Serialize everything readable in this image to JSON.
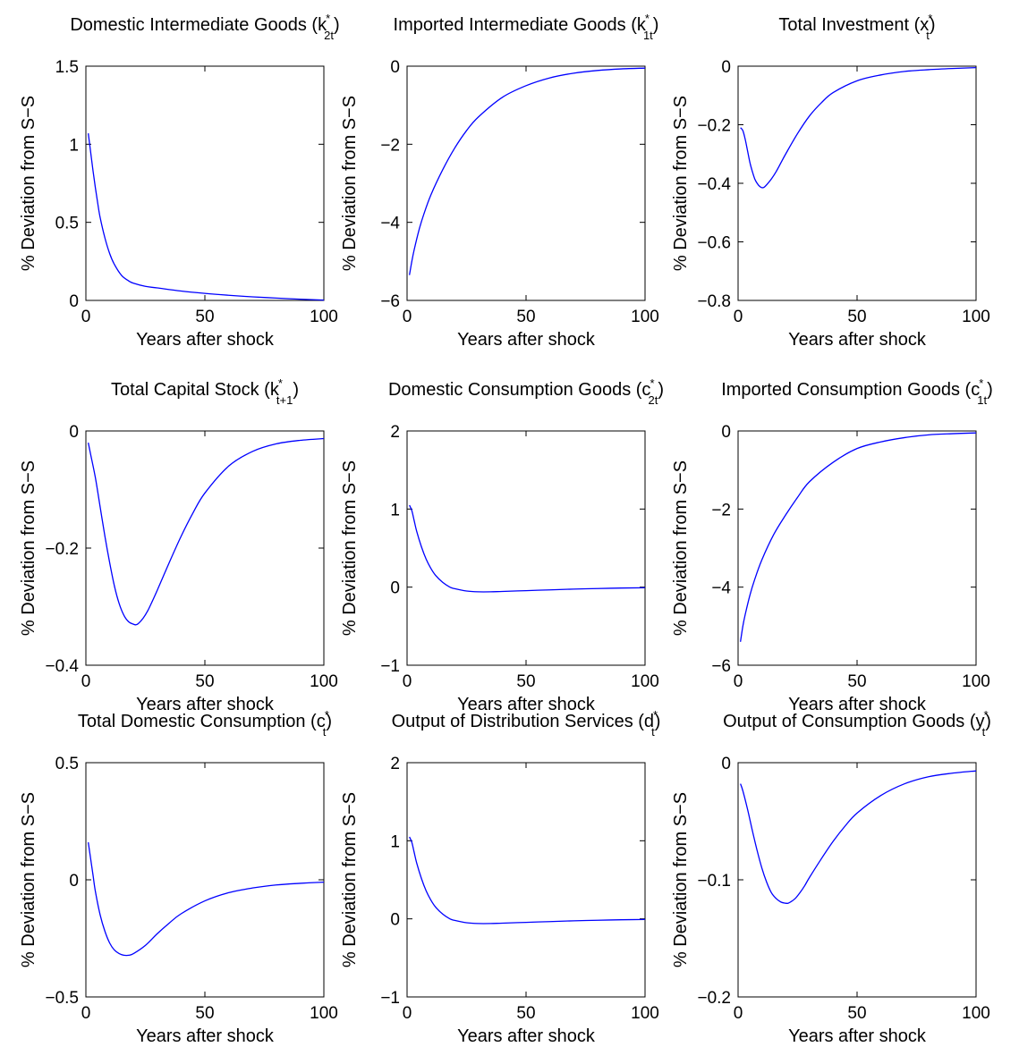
{
  "figure": {
    "line_color": "#0000ff",
    "axes_color": "#000000"
  },
  "chart_data": [
    {
      "type": "line",
      "title": "Domestic Intermediate Goods (k",
      "title_sup": "*",
      "title_sub": "2t",
      "title_close": ")",
      "xlabel": "Years after shock",
      "ylabel": "% Deviation from S−S",
      "xlim": [
        0,
        100
      ],
      "ylim": [
        0,
        1.5
      ],
      "xticks": [
        0,
        50,
        100
      ],
      "xtick_labels": [
        "0",
        "50",
        "100"
      ],
      "yticks": [
        0,
        0.5,
        1,
        1.5
      ],
      "ytick_labels": [
        "0",
        "0.5",
        "1",
        "1.5"
      ],
      "series": [
        {
          "x": [
            1,
            2,
            3,
            4,
            5,
            6,
            8,
            10,
            12,
            15,
            18,
            20,
            25,
            30,
            40,
            50,
            60,
            70,
            80,
            90,
            100
          ],
          "values": [
            1.07,
            0.95,
            0.83,
            0.72,
            0.62,
            0.53,
            0.4,
            0.3,
            0.23,
            0.16,
            0.125,
            0.11,
            0.09,
            0.08,
            0.06,
            0.045,
            0.033,
            0.023,
            0.015,
            0.008,
            0.002
          ]
        }
      ]
    },
    {
      "type": "line",
      "title": "Imported Intermediate Goods (k",
      "title_sup": "*",
      "title_sub": "1t",
      "title_close": ")",
      "xlabel": "Years after shock",
      "ylabel": "% Deviation from S−S",
      "xlim": [
        0,
        100
      ],
      "ylim": [
        -6,
        0
      ],
      "xticks": [
        0,
        50,
        100
      ],
      "xtick_labels": [
        "0",
        "50",
        "100"
      ],
      "yticks": [
        -6,
        -4,
        -2,
        0
      ],
      "ytick_labels": [
        "−6",
        "−4",
        "−2",
        "0"
      ],
      "series": [
        {
          "x": [
            1,
            2,
            3,
            5,
            7,
            10,
            15,
            20,
            25,
            30,
            40,
            50,
            60,
            70,
            80,
            90,
            100
          ],
          "values": [
            -5.35,
            -5.0,
            -4.7,
            -4.2,
            -3.8,
            -3.3,
            -2.65,
            -2.1,
            -1.65,
            -1.3,
            -0.8,
            -0.5,
            -0.3,
            -0.18,
            -0.11,
            -0.07,
            -0.05
          ]
        }
      ]
    },
    {
      "type": "line",
      "title": "Total Investment (x",
      "title_sup": "*",
      "title_sub": "t",
      "title_close": ")",
      "xlabel": "Years after shock",
      "ylabel": "% Deviation from S−S",
      "xlim": [
        0,
        100
      ],
      "ylim": [
        -0.8,
        0
      ],
      "xticks": [
        0,
        50,
        100
      ],
      "xtick_labels": [
        "0",
        "50",
        "100"
      ],
      "yticks": [
        -0.8,
        -0.6,
        -0.4,
        -0.2,
        0
      ],
      "ytick_labels": [
        "−0.8",
        "−0.6",
        "−0.4",
        "−0.2",
        "0"
      ],
      "series": [
        {
          "x": [
            1,
            2,
            3,
            4,
            5,
            6,
            7,
            8,
            9,
            10,
            11,
            12,
            14,
            16,
            18,
            20,
            25,
            30,
            35,
            40,
            50,
            60,
            70,
            80,
            90,
            100
          ],
          "values": [
            -0.21,
            -0.22,
            -0.25,
            -0.29,
            -0.33,
            -0.36,
            -0.385,
            -0.4,
            -0.41,
            -0.415,
            -0.413,
            -0.405,
            -0.385,
            -0.36,
            -0.33,
            -0.3,
            -0.23,
            -0.17,
            -0.125,
            -0.09,
            -0.05,
            -0.03,
            -0.018,
            -0.012,
            -0.008,
            -0.005
          ]
        }
      ]
    },
    {
      "type": "line",
      "title": "Total Capital Stock (k",
      "title_sup": "*",
      "title_sub": "t+1",
      "title_close": ")",
      "xlabel": "Years after shock",
      "ylabel": "% Deviation from S−S",
      "xlim": [
        0,
        100
      ],
      "ylim": [
        -0.4,
        0
      ],
      "xticks": [
        0,
        50,
        100
      ],
      "xtick_labels": [
        "0",
        "50",
        "100"
      ],
      "yticks": [
        -0.4,
        -0.2,
        0
      ],
      "ytick_labels": [
        "−0.4",
        "−0.2",
        "0"
      ],
      "series": [
        {
          "x": [
            1,
            2,
            4,
            6,
            8,
            10,
            12,
            14,
            16,
            18,
            20,
            21,
            22,
            24,
            26,
            28,
            30,
            35,
            40,
            45,
            50,
            60,
            70,
            80,
            90,
            100
          ],
          "values": [
            -0.02,
            -0.04,
            -0.08,
            -0.13,
            -0.18,
            -0.225,
            -0.265,
            -0.295,
            -0.315,
            -0.326,
            -0.33,
            -0.331,
            -0.329,
            -0.32,
            -0.307,
            -0.29,
            -0.272,
            -0.225,
            -0.18,
            -0.14,
            -0.106,
            -0.06,
            -0.035,
            -0.022,
            -0.016,
            -0.013
          ]
        }
      ]
    },
    {
      "type": "line",
      "title": "Domestic Consumption Goods (c",
      "title_sup": "*",
      "title_sub": "2t",
      "title_close": ")",
      "xlabel": "Years after shock",
      "ylabel": "% Deviation from S−S",
      "xlim": [
        0,
        100
      ],
      "ylim": [
        -1,
        2
      ],
      "xticks": [
        0,
        50,
        100
      ],
      "xtick_labels": [
        "0",
        "50",
        "100"
      ],
      "yticks": [
        -1,
        0,
        1,
        2
      ],
      "ytick_labels": [
        "−1",
        "0",
        "1",
        "2"
      ],
      "series": [
        {
          "x": [
            1,
            2,
            3,
            4,
            6,
            8,
            10,
            12,
            15,
            18,
            20,
            25,
            30,
            35,
            40,
            50,
            60,
            70,
            80,
            90,
            100
          ],
          "values": [
            1.05,
            0.98,
            0.85,
            0.72,
            0.52,
            0.36,
            0.24,
            0.15,
            0.06,
            0.0,
            -0.02,
            -0.05,
            -0.06,
            -0.06,
            -0.055,
            -0.045,
            -0.035,
            -0.025,
            -0.018,
            -0.012,
            -0.008
          ]
        }
      ]
    },
    {
      "type": "line",
      "title": "Imported Consumption Goods (c",
      "title_sup": "*",
      "title_sub": "1t",
      "title_close": ")",
      "xlabel": "Years after shock",
      "ylabel": "% Deviation from S−S",
      "xlim": [
        0,
        100
      ],
      "ylim": [
        -6,
        0
      ],
      "xticks": [
        0,
        50,
        100
      ],
      "xtick_labels": [
        "0",
        "50",
        "100"
      ],
      "yticks": [
        -6,
        -4,
        -2,
        0
      ],
      "ytick_labels": [
        "−6",
        "−4",
        "−2",
        "0"
      ],
      "series": [
        {
          "x": [
            1,
            2,
            3,
            5,
            7,
            10,
            15,
            20,
            25,
            30,
            40,
            50,
            60,
            70,
            80,
            90,
            100
          ],
          "values": [
            -5.4,
            -5.0,
            -4.7,
            -4.2,
            -3.8,
            -3.3,
            -2.65,
            -2.15,
            -1.7,
            -1.3,
            -0.8,
            -0.45,
            -0.28,
            -0.17,
            -0.1,
            -0.07,
            -0.05
          ]
        }
      ]
    },
    {
      "type": "line",
      "title": "Total Domestic Consumption (c",
      "title_sup": "*",
      "title_sub": "t",
      "title_close": ")",
      "xlabel": "Years after shock",
      "ylabel": "% Deviation from S−S",
      "xlim": [
        0,
        100
      ],
      "ylim": [
        -0.5,
        0.5
      ],
      "xticks": [
        0,
        50,
        100
      ],
      "xtick_labels": [
        "0",
        "50",
        "100"
      ],
      "yticks": [
        -0.5,
        0,
        0.5
      ],
      "ytick_labels": [
        "−0.5",
        "0",
        "0.5"
      ],
      "series": [
        {
          "x": [
            1,
            2,
            3,
            4,
            6,
            8,
            10,
            12,
            14,
            16,
            18,
            20,
            25,
            30,
            35,
            40,
            50,
            60,
            70,
            80,
            90,
            100
          ],
          "values": [
            0.16,
            0.09,
            0.02,
            -0.05,
            -0.15,
            -0.22,
            -0.27,
            -0.3,
            -0.315,
            -0.322,
            -0.322,
            -0.315,
            -0.28,
            -0.23,
            -0.185,
            -0.145,
            -0.09,
            -0.055,
            -0.035,
            -0.022,
            -0.015,
            -0.01
          ]
        }
      ]
    },
    {
      "type": "line",
      "title": "Output of Distribution Services (d",
      "title_sup": "*",
      "title_sub": "t",
      "title_close": ")",
      "xlabel": "Years after shock",
      "ylabel": "% Deviation from S−S",
      "xlim": [
        0,
        100
      ],
      "ylim": [
        -1,
        2
      ],
      "xticks": [
        0,
        50,
        100
      ],
      "xtick_labels": [
        "0",
        "50",
        "100"
      ],
      "yticks": [
        -1,
        0,
        1,
        2
      ],
      "ytick_labels": [
        "−1",
        "0",
        "1",
        "2"
      ],
      "series": [
        {
          "x": [
            1,
            2,
            3,
            4,
            6,
            8,
            10,
            12,
            15,
            18,
            20,
            25,
            30,
            35,
            40,
            50,
            60,
            70,
            80,
            90,
            100
          ],
          "values": [
            1.05,
            0.98,
            0.85,
            0.72,
            0.52,
            0.36,
            0.24,
            0.15,
            0.06,
            0.0,
            -0.02,
            -0.05,
            -0.06,
            -0.06,
            -0.055,
            -0.045,
            -0.035,
            -0.025,
            -0.018,
            -0.012,
            -0.008
          ]
        }
      ]
    },
    {
      "type": "line",
      "title": "Output of Consumption Goods (y",
      "title_sup": "*",
      "title_sub": "t",
      "title_close": ")",
      "xlabel": "Years after shock",
      "ylabel": "% Deviation from S−S",
      "xlim": [
        0,
        100
      ],
      "ylim": [
        -0.2,
        0
      ],
      "xticks": [
        0,
        50,
        100
      ],
      "xtick_labels": [
        "0",
        "50",
        "100"
      ],
      "yticks": [
        -0.2,
        -0.1,
        0
      ],
      "ytick_labels": [
        "−0.2",
        "−0.1",
        "0"
      ],
      "series": [
        {
          "x": [
            1,
            2,
            4,
            6,
            8,
            10,
            12,
            14,
            16,
            18,
            20,
            21,
            22,
            24,
            26,
            28,
            30,
            35,
            40,
            45,
            50,
            60,
            70,
            80,
            90,
            100
          ],
          "values": [
            -0.018,
            -0.024,
            -0.04,
            -0.058,
            -0.075,
            -0.09,
            -0.102,
            -0.111,
            -0.116,
            -0.119,
            -0.12,
            -0.12,
            -0.119,
            -0.116,
            -0.111,
            -0.105,
            -0.098,
            -0.082,
            -0.067,
            -0.054,
            -0.043,
            -0.028,
            -0.018,
            -0.012,
            -0.009,
            -0.007
          ]
        }
      ]
    }
  ]
}
